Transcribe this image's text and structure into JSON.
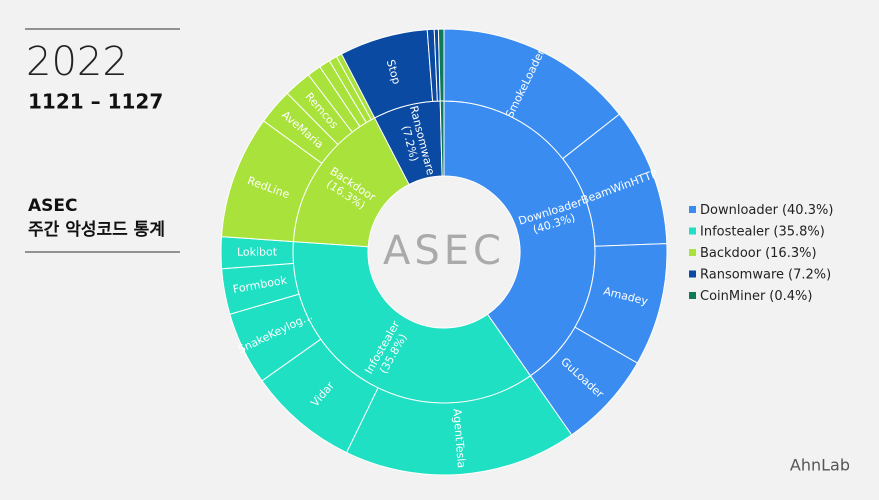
{
  "header": {
    "year": "2022",
    "period": "1121 – 1127",
    "title_line1": "ASEC",
    "title_line2": "주간 악성코드 통계",
    "logo": "ASEC",
    "brand": "AhnLab"
  },
  "chart_data": {
    "type": "sunburst",
    "series": [
      {
        "name": "Downloader",
        "color": "#3a8cf0",
        "value": 40.3,
        "value_label": "(40.3%)",
        "children": [
          {
            "name": "SmokeLoader",
            "value": 14.4
          },
          {
            "name": "BeamWinHTTP",
            "value": 10
          },
          {
            "name": "Amadey",
            "value": 8.9
          },
          {
            "name": "GuLoader",
            "value": 7
          }
        ]
      },
      {
        "name": "Infostealer",
        "color": "#1fe0c2",
        "value": 35.8,
        "value_label": "(35.8%)",
        "children": [
          {
            "name": "AgentTesla",
            "value": 16.9
          },
          {
            "name": "Vidar",
            "value": 8
          },
          {
            "name": "SnakeKeylog…",
            "value": 5.3
          },
          {
            "name": "Formbook",
            "value": 3.3
          },
          {
            "name": "Lokibot",
            "value": 2.3
          }
        ]
      },
      {
        "name": "Backdoor",
        "color": "#a8e23a",
        "value": 16.3,
        "value_label": "(16.3%)",
        "children": [
          {
            "name": "RedLine",
            "value": 8.9
          },
          {
            "name": "AveMaria",
            "value": 2.6
          },
          {
            "name": "Remcos",
            "value": 2
          },
          {
            "name": null,
            "value": 1
          },
          {
            "name": null,
            "value": 0.8
          },
          {
            "name": null,
            "value": 0.6
          },
          {
            "name": null,
            "value": 0.4
          }
        ]
      },
      {
        "name": "Ransomware",
        "color": "#0b4aa2",
        "value": 7.2,
        "value_label": "(7.2%)",
        "children": [
          {
            "name": "Stop",
            "value": 6.4
          },
          {
            "name": null,
            "value": 0.5
          },
          {
            "name": null,
            "value": 0.3
          }
        ]
      },
      {
        "name": "CoinMiner",
        "color": "#0e7a58",
        "value": 0.4,
        "value_label": "(0.4%)",
        "children": [
          {
            "name": null,
            "value": 0.4
          }
        ]
      }
    ]
  }
}
